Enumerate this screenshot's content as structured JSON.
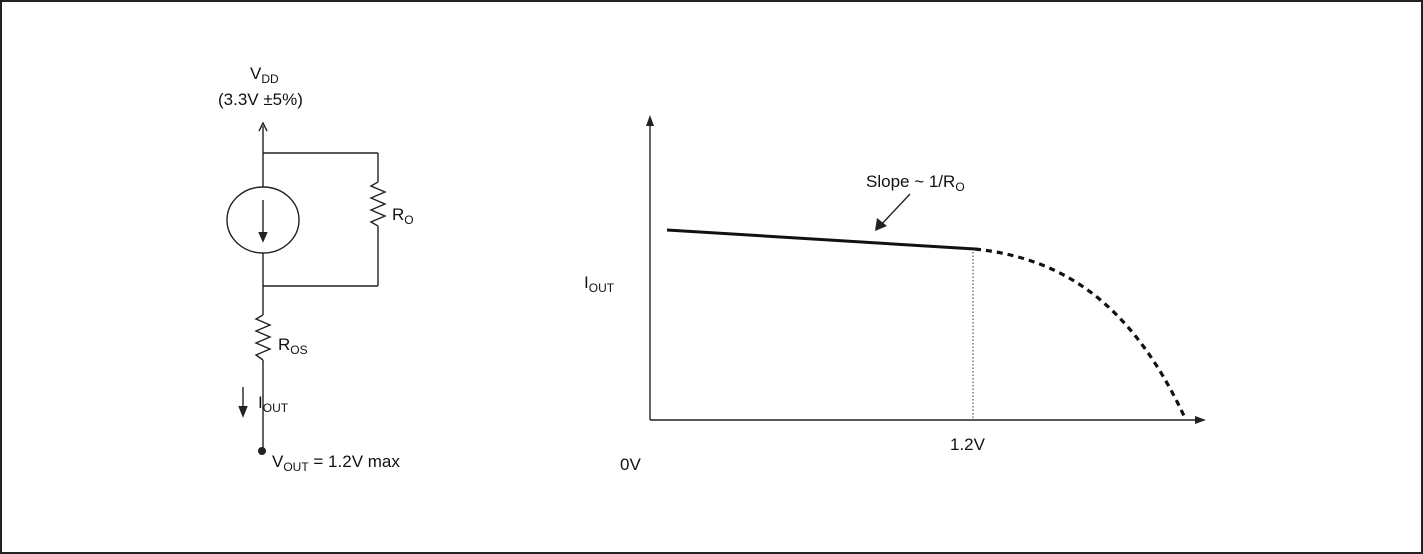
{
  "circuit": {
    "vdd": {
      "main": "V",
      "sub": "DD",
      "spec": "(3.3V ±5%)"
    },
    "ro": {
      "main": "R",
      "sub": "O"
    },
    "ros": {
      "main": "R",
      "sub": "OS"
    },
    "iout": {
      "main": "I",
      "sub": "OUT"
    },
    "vout": {
      "main": "V",
      "sub": "OUT",
      "rest": " = 1.2V max"
    }
  },
  "graph": {
    "y_label": {
      "main": "I",
      "sub": "OUT"
    },
    "x_origin_label": "0V",
    "x_knee_label": "1.2V",
    "slope_label": {
      "main": "Slope ~ 1/R",
      "sub": "O"
    }
  }
}
